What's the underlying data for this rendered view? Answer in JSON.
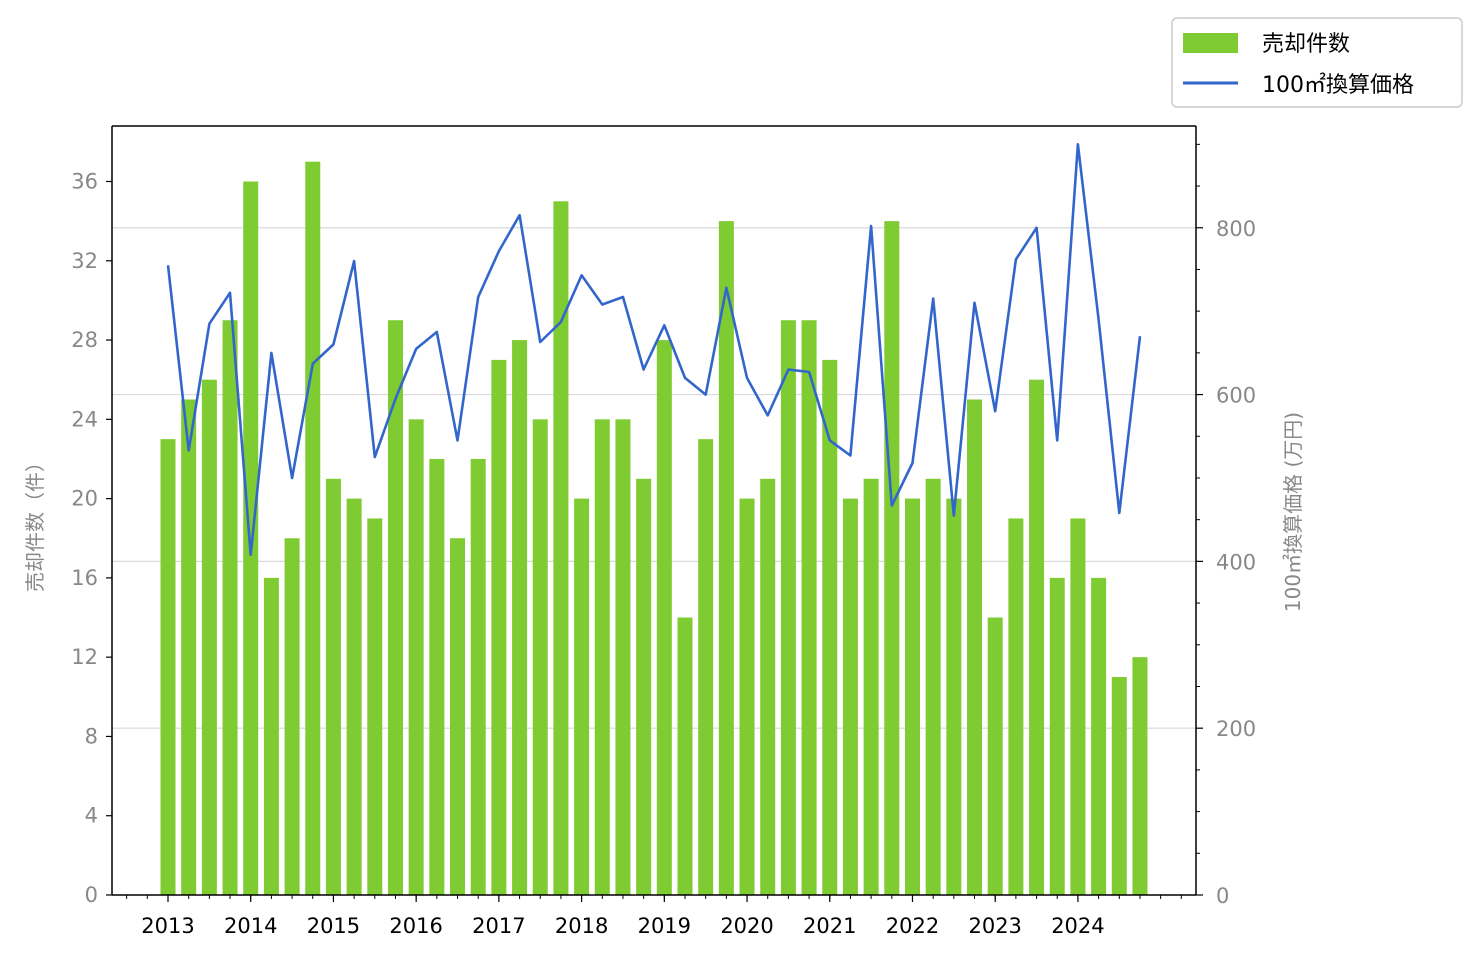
{
  "chart_data": {
    "type": "bar+line",
    "x_tick_labels": [
      "2013",
      "2014",
      "2015",
      "2016",
      "2017",
      "2018",
      "2019",
      "2020",
      "2021",
      "2022",
      "2023",
      "2024"
    ],
    "ylabel_left": "売却件数（件）",
    "ylabel_right": "100㎡換算価格 (万円)",
    "ylim_left": [
      0,
      38.8
    ],
    "ylim_right": [
      0,
      922
    ],
    "yticks_left": [
      "0",
      "4",
      "8",
      "12",
      "16",
      "20",
      "24",
      "28",
      "32",
      "36"
    ],
    "yticks_right": [
      "0",
      "200",
      "400",
      "600",
      "800"
    ],
    "grid": "horizontal, right-axis majors",
    "legend_position": "top-right, outside plot",
    "colors": {
      "bars": "#7fcb32",
      "line": "#3366cc",
      "grid": "#d9d9d9",
      "tick_text_gray": "#888888"
    },
    "series": [
      {
        "name": "売却件数",
        "type": "bar",
        "axis": "left",
        "values": [
          23,
          25,
          26,
          29,
          36,
          16,
          18,
          37,
          21,
          20,
          19,
          29,
          24,
          22,
          18,
          22,
          27,
          28,
          24,
          35,
          20,
          24,
          24,
          21,
          28,
          14,
          23,
          34,
          20,
          21,
          29,
          29,
          27,
          20,
          21,
          34,
          20,
          21,
          20,
          25,
          14,
          19,
          26,
          16,
          19,
          16,
          11,
          12
        ]
      },
      {
        "name": "100㎡換算価格",
        "type": "line",
        "axis": "right",
        "values": [
          755,
          533,
          685,
          722,
          408,
          650,
          500,
          637,
          660,
          760,
          525,
          595,
          655,
          675,
          545,
          717,
          772,
          815,
          663,
          687,
          743,
          708,
          717,
          630,
          683,
          620,
          600,
          728,
          620,
          575,
          630,
          627,
          545,
          527,
          802,
          467,
          518,
          715,
          455,
          710,
          580,
          762,
          800,
          545,
          900,
          690,
          458,
          670
        ]
      }
    ]
  }
}
